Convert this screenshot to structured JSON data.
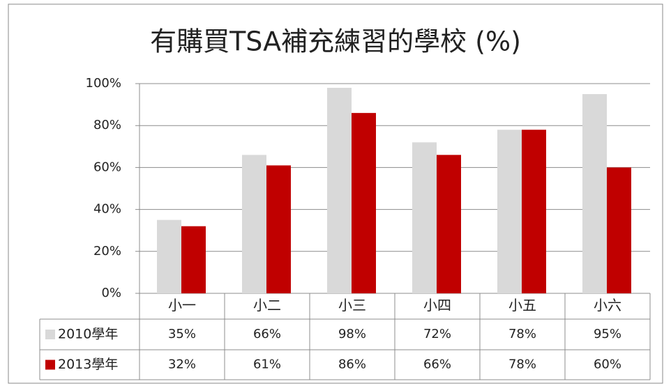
{
  "chart_data": {
    "type": "bar",
    "title": "有購買TSA補充練習的學校 (%)",
    "categories": [
      "小一",
      "小二",
      "小三",
      "小四",
      "小五",
      "小六"
    ],
    "series": [
      {
        "name": "2010學年",
        "color": "#d9d9d9",
        "values": [
          35,
          66,
          98,
          72,
          78,
          95
        ],
        "value_labels": [
          "35%",
          "66%",
          "98%",
          "72%",
          "78%",
          "95%"
        ]
      },
      {
        "name": "2013學年",
        "color": "#c00000",
        "values": [
          32,
          61,
          86,
          66,
          78,
          60
        ],
        "value_labels": [
          "32%",
          "61%",
          "86%",
          "66%",
          "78%",
          "60%"
        ]
      }
    ],
    "ylim": [
      0,
      100
    ],
    "yticks": [
      {
        "value": 0,
        "label": "0%"
      },
      {
        "value": 20,
        "label": "20%"
      },
      {
        "value": 40,
        "label": "40%"
      },
      {
        "value": 60,
        "label": "60%"
      },
      {
        "value": 80,
        "label": "80%"
      },
      {
        "value": 100,
        "label": "100%"
      }
    ],
    "grid": true
  }
}
